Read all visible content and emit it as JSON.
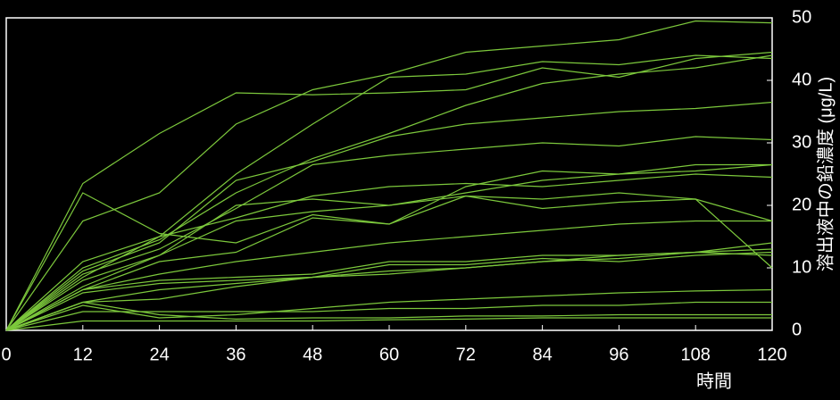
{
  "chart_data": {
    "type": "line",
    "x_label": "時間",
    "y_label": "溶出液中の鉛濃度 (μg/L)",
    "x": [
      0,
      12,
      24,
      36,
      48,
      60,
      72,
      84,
      96,
      108,
      120
    ],
    "xlim": [
      0,
      120
    ],
    "xticks": [
      0,
      12,
      24,
      36,
      48,
      60,
      72,
      84,
      96,
      108,
      120
    ],
    "ylim": [
      0,
      50
    ],
    "yticks": [
      0,
      10,
      20,
      30,
      40,
      50
    ],
    "grid": false,
    "color": "#7cc83c",
    "series": [
      {
        "values": [
          0,
          23.5,
          31.5,
          38,
          37.7,
          38,
          38.5,
          42,
          40.5,
          43.5,
          44.5
        ]
      },
      {
        "values": [
          0,
          22,
          15.5,
          14,
          18.5,
          17,
          23,
          25.5,
          25,
          25.5,
          26.5
        ]
      },
      {
        "values": [
          0,
          17.5,
          22,
          33,
          38.5,
          41,
          44.5,
          45.5,
          46.5,
          49.5,
          49.2
        ]
      },
      {
        "values": [
          0,
          11,
          15,
          25,
          33,
          40.5,
          41,
          43,
          42.5,
          44,
          43.5
        ]
      },
      {
        "values": [
          0,
          10,
          14.5,
          22,
          27.5,
          31.5,
          36,
          39.5,
          41,
          42,
          44
        ]
      },
      {
        "values": [
          0,
          9.5,
          14,
          24,
          27,
          31,
          33,
          34,
          35,
          35.5,
          36.5
        ]
      },
      {
        "values": [
          0,
          9,
          13,
          19.5,
          26.5,
          28,
          29,
          30,
          29.5,
          31,
          30.5
        ]
      },
      {
        "values": [
          0,
          8,
          12,
          20,
          21,
          20,
          22,
          24,
          25,
          26.5,
          26.5
        ]
      },
      {
        "values": [
          0,
          8.5,
          15,
          18,
          21.5,
          23,
          23.5,
          23,
          24,
          25,
          24.5
        ]
      },
      {
        "values": [
          0,
          7,
          12,
          17.5,
          19,
          20,
          21.5,
          21,
          22,
          21,
          10
        ]
      },
      {
        "values": [
          0,
          6.5,
          11,
          12.5,
          18,
          17,
          21.5,
          19.5,
          20.5,
          21,
          17.5
        ]
      },
      {
        "values": [
          0,
          6.5,
          9,
          11,
          12.5,
          14,
          15,
          16,
          17,
          17.5,
          17.5
        ]
      },
      {
        "values": [
          0,
          6.5,
          8,
          8.5,
          9,
          11,
          11,
          12,
          12,
          12.5,
          14
        ]
      },
      {
        "values": [
          0,
          6,
          7.5,
          8,
          8.5,
          10.5,
          10.5,
          11.5,
          11,
          12,
          12.5
        ]
      },
      {
        "values": [
          0,
          4.5,
          6.5,
          7.5,
          8.5,
          9,
          10,
          11,
          11.5,
          12.5,
          12
        ]
      },
      {
        "values": [
          0,
          4.5,
          5,
          7,
          8.5,
          9.5,
          10,
          11,
          12,
          12.5,
          13
        ]
      },
      {
        "values": [
          0,
          4,
          2,
          2.5,
          3.5,
          4.5,
          5,
          5.5,
          6,
          6.3,
          6.5
        ]
      },
      {
        "values": [
          0,
          3,
          3,
          3,
          3,
          3.5,
          3.5,
          4,
          4,
          4.5,
          4.5
        ]
      },
      {
        "values": [
          0,
          4.5,
          2.5,
          1.8,
          2,
          2,
          2.3,
          2.3,
          2.5,
          2.5,
          2.5
        ]
      },
      {
        "values": [
          0,
          1.5,
          1.5,
          1.5,
          1.5,
          1.7,
          1.8,
          2,
          2,
          2,
          2
        ]
      }
    ]
  }
}
